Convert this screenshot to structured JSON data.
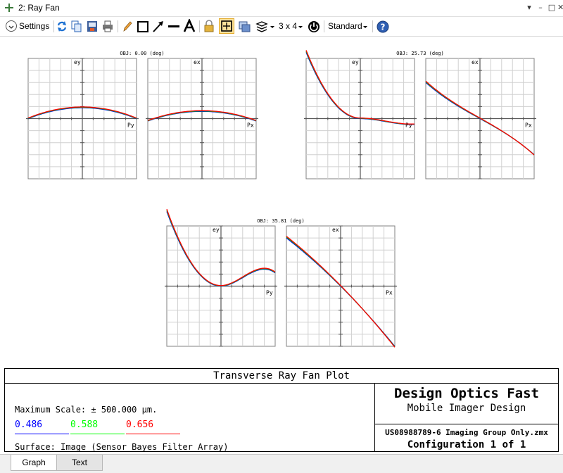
{
  "window": {
    "title": "2: Ray Fan"
  },
  "toolbar": {
    "settings_label": "Settings",
    "layout_label": "3 x 4",
    "style_label": "Standard"
  },
  "plots": [
    {
      "obj_label": "OBJ: 0.00 (deg)",
      "y_axis_label": "ey",
      "x_axis_label": "Py"
    },
    {
      "obj_label": "",
      "y_axis_label": "ex",
      "x_axis_label": "Px"
    },
    {
      "obj_label": "OBJ: 25.73 (deg)",
      "y_axis_label": "ey",
      "x_axis_label": "Py"
    },
    {
      "obj_label": "",
      "y_axis_label": "ex",
      "x_axis_label": "Px"
    },
    {
      "obj_label": "OBJ: 35.81 (deg)",
      "y_axis_label": "ey",
      "x_axis_label": "Py"
    },
    {
      "obj_label": "",
      "y_axis_label": "ex",
      "x_axis_label": "Px"
    }
  ],
  "info": {
    "plot_title": "Transverse Ray Fan Plot",
    "max_scale": "Maximum Scale: ± 500.000 µm.",
    "wavelengths": [
      {
        "label": "0.486",
        "color": "#0000ff"
      },
      {
        "label": "0.588",
        "color": "#00ff00"
      },
      {
        "label": "0.656",
        "color": "#ff0000"
      }
    ],
    "surface": "Surface: Image (Sensor Bayes Filter Array)",
    "company": "Design Optics Fast",
    "design": "Mobile Imager Design",
    "file": "US08988789-6 Imaging Group Only.zmx",
    "configuration": "Configuration 1 of 1"
  },
  "tabs": [
    {
      "label": "Graph",
      "active": true
    },
    {
      "label": "Text",
      "active": false
    }
  ]
}
